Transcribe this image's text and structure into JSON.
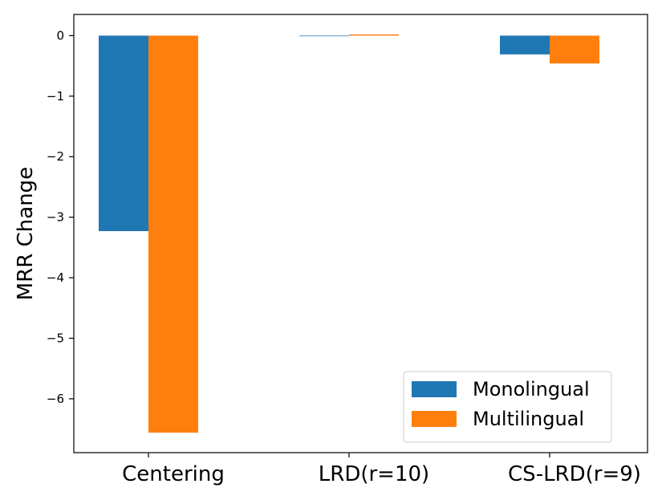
{
  "chart_data": {
    "type": "bar",
    "title": "",
    "xlabel": "",
    "ylabel": "MRR Change",
    "categories": [
      "Centering",
      "LRD(r=10)",
      "CS-LRD(r=9)"
    ],
    "series": [
      {
        "name": "Monolingual",
        "color": "#1f77b4",
        "values": [
          -3.23,
          -0.01,
          -0.31
        ]
      },
      {
        "name": "Multilingual",
        "color": "#ff7f0e",
        "values": [
          -6.56,
          0.02,
          -0.46
        ]
      }
    ],
    "ylim": [
      -6.89,
      0.35
    ],
    "yticks": [
      0,
      -1,
      -2,
      -3,
      -4,
      -5,
      -6
    ],
    "ytick_labels": [
      "0",
      "−1",
      "−2",
      "−3",
      "−4",
      "−5",
      "−6"
    ],
    "legend_position": "lower-right",
    "grid": false
  }
}
